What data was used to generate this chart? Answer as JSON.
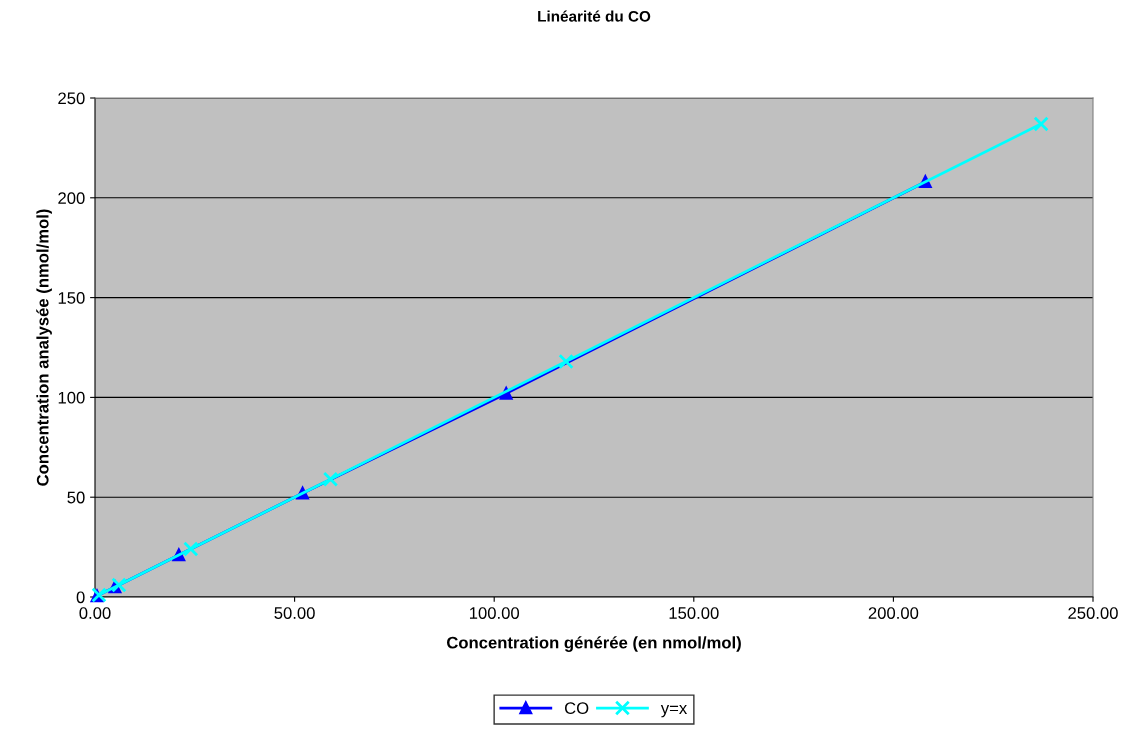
{
  "chart_data": {
    "type": "line",
    "title": "Linéarité du CO",
    "xlabel": "Concentration générée (en nmol/mol)",
    "ylabel": "Concentration analysée (nmol/mol)",
    "xlim": [
      0,
      250
    ],
    "xticks": [
      {
        "value": 0,
        "label": "0.00"
      },
      {
        "value": 50,
        "label": "50.00"
      },
      {
        "value": 100,
        "label": "100.00"
      },
      {
        "value": 150,
        "label": "150.00"
      },
      {
        "value": 200,
        "label": "200.00"
      },
      {
        "value": 250,
        "label": "250.00"
      }
    ],
    "ylim": [
      0,
      250
    ],
    "yticks": [
      0,
      50,
      100,
      150,
      200,
      250
    ],
    "grid": "y",
    "legend": "bottom",
    "series": [
      {
        "name": "CO",
        "color": "#0000ff",
        "marker": "triangle",
        "x": [
          0.5,
          5,
          21,
          52,
          103,
          208
        ],
        "values": [
          0.5,
          5,
          21,
          52,
          102,
          208
        ]
      },
      {
        "name": "y=x",
        "color": "#00ffff",
        "marker": "cross",
        "x": [
          1,
          6,
          24,
          59,
          118,
          237
        ],
        "values": [
          1,
          6,
          24,
          59,
          118,
          237
        ]
      }
    ]
  }
}
